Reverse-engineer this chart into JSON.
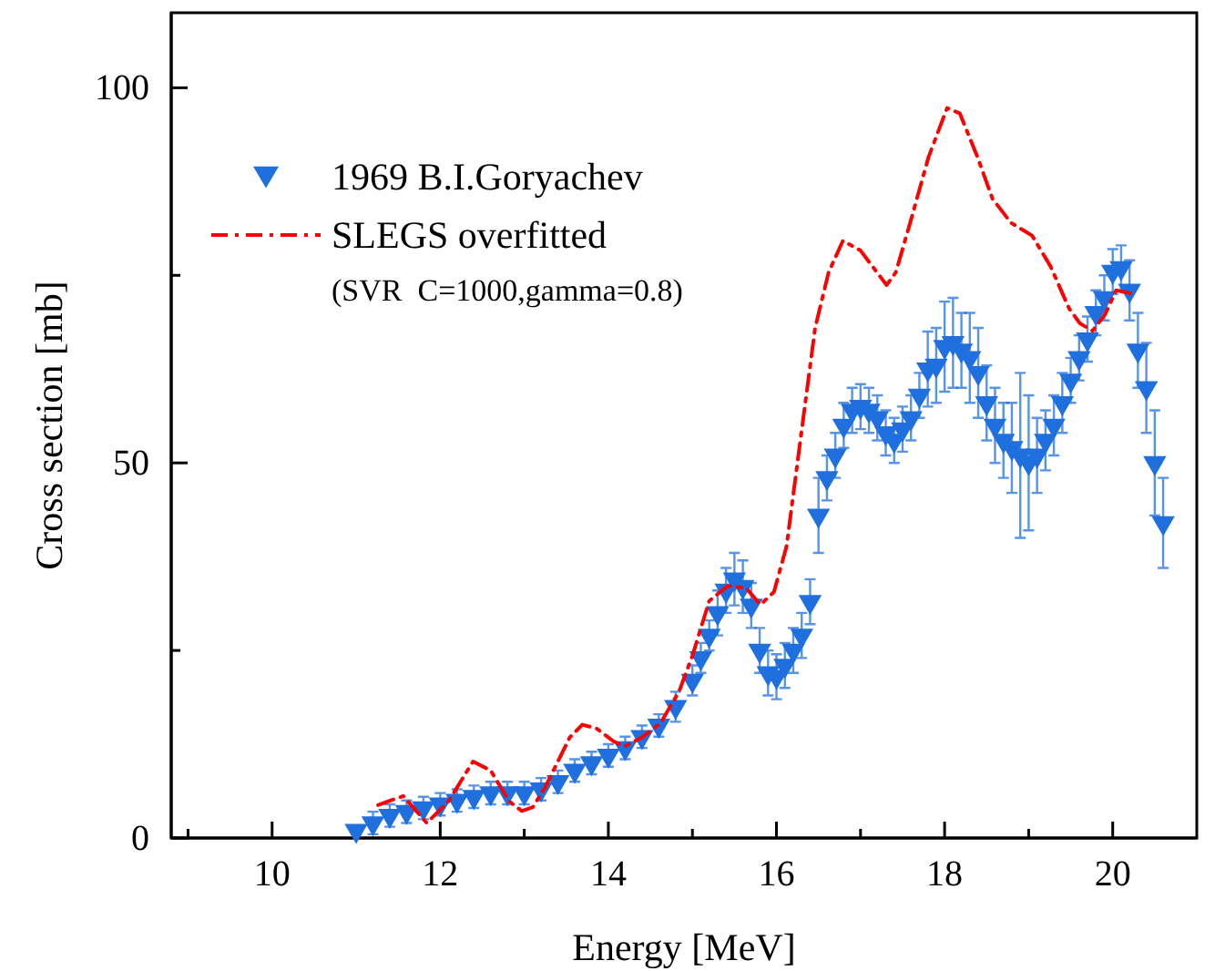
{
  "chart_data": {
    "type": "scatter",
    "xlabel": "Energy [MeV]",
    "ylabel": "Cross section [mb]",
    "xlim": [
      8.8,
      21
    ],
    "ylim": [
      0,
      110
    ],
    "xticks": [
      {
        "value": 9,
        "label": null
      },
      10,
      {
        "value": 11,
        "label": null
      },
      12,
      {
        "value": 13,
        "label": null
      },
      14,
      {
        "value": 15,
        "label": null
      },
      16,
      {
        "value": 17,
        "label": null
      },
      18,
      {
        "value": 19,
        "label": null
      },
      20
    ],
    "yticks": [
      0,
      {
        "value": 25,
        "label": null
      },
      50,
      {
        "value": 75,
        "label": null
      },
      100
    ],
    "legend": "top left",
    "grid": false,
    "annotations": [
      "(SVR  C=1000,gamma=0.8)"
    ],
    "series": [
      {
        "name": "1969 B.I.Goryachev",
        "marker": "triangle",
        "color": "#1f6fde",
        "line_style": "none",
        "x": [
          11.0,
          11.2,
          11.4,
          11.6,
          11.8,
          12.0,
          12.2,
          12.4,
          12.6,
          12.8,
          13.0,
          13.2,
          13.4,
          13.6,
          13.8,
          14.0,
          14.2,
          14.4,
          14.6,
          14.8,
          15.0,
          15.1,
          15.2,
          15.3,
          15.4,
          15.5,
          15.6,
          15.7,
          15.8,
          15.9,
          16.0,
          16.1,
          16.2,
          16.3,
          16.4,
          16.5,
          16.6,
          16.7,
          16.8,
          16.9,
          17.0,
          17.1,
          17.2,
          17.3,
          17.4,
          17.5,
          17.6,
          17.7,
          17.8,
          17.9,
          18.0,
          18.1,
          18.2,
          18.3,
          18.4,
          18.5,
          18.6,
          18.7,
          18.8,
          18.9,
          19.0,
          19.1,
          19.2,
          19.3,
          19.4,
          19.5,
          19.6,
          19.7,
          19.8,
          19.9,
          20.0,
          20.1,
          20.2,
          20.3,
          20.4,
          20.5,
          20.6
        ],
        "values": [
          1,
          2,
          3,
          3.5,
          4,
          4.5,
          5,
          5.5,
          6,
          6,
          6,
          6.5,
          7.5,
          9,
          10,
          11,
          12,
          13.5,
          15,
          17.5,
          21,
          24,
          27,
          30,
          33,
          34.5,
          33.5,
          31,
          25,
          22,
          21.5,
          23,
          25,
          27,
          31.5,
          43,
          48,
          51,
          55,
          57,
          57.5,
          57,
          56,
          54,
          53,
          54.5,
          56,
          59,
          62.5,
          63,
          65.5,
          66,
          65,
          64,
          62,
          58,
          55,
          53,
          52,
          51,
          50,
          51,
          53,
          55,
          58,
          61,
          64,
          66.5,
          70,
          72,
          75.5,
          76,
          73,
          65,
          60,
          50,
          42
        ],
        "errors": [
          0.5,
          1.5,
          1.5,
          1.5,
          1.5,
          1.5,
          1.5,
          1.5,
          1.5,
          1.5,
          1.5,
          1.5,
          1.5,
          1.5,
          1.5,
          1.5,
          1.5,
          1.5,
          1.5,
          2,
          2,
          2,
          2,
          3,
          3,
          3.5,
          3.5,
          3,
          3,
          3,
          3,
          3,
          3,
          3,
          3,
          5,
          3,
          3,
          3,
          3,
          3,
          3,
          3,
          3,
          3,
          3,
          3,
          3,
          5,
          5,
          6,
          6,
          5,
          6,
          6,
          5,
          5,
          5,
          6,
          11,
          9,
          5,
          4,
          4,
          4,
          3,
          3,
          3,
          3,
          3,
          3,
          3,
          4,
          5,
          6,
          7,
          6
        ]
      },
      {
        "name": "SLEGS overfitted",
        "type": "line",
        "marker": "none",
        "line_style": "dashed",
        "color": "#ff0000",
        "x": [
          11.26,
          11.56,
          11.84,
          12.1,
          12.39,
          12.6,
          12.82,
          12.97,
          13.1,
          13.25,
          13.4,
          13.54,
          13.69,
          13.86,
          14.06,
          14.19,
          14.4,
          14.62,
          14.84,
          15.0,
          15.2,
          15.42,
          15.64,
          15.81,
          15.97,
          16.12,
          16.29,
          16.46,
          16.62,
          16.79,
          17.0,
          17.31,
          17.42,
          17.59,
          17.81,
          18.03,
          18.18,
          18.39,
          18.57,
          18.79,
          19.04,
          19.26,
          19.48,
          19.61,
          19.76,
          19.91,
          20.04,
          20.26
        ],
        "values": [
          4.4,
          5.6,
          2,
          4.9,
          10.2,
          9,
          4.9,
          3.6,
          4.1,
          6.8,
          10.2,
          13.4,
          15.1,
          14.6,
          12.9,
          12.2,
          13.4,
          15.3,
          19.5,
          24.3,
          31.6,
          33.6,
          33.3,
          31.1,
          32.8,
          38.9,
          53.5,
          68,
          75.4,
          79.6,
          78.3,
          73.7,
          75.4,
          82,
          90.8,
          97.3,
          96.6,
          90.8,
          85.2,
          82,
          80.3,
          76.2,
          70.6,
          68.6,
          67.6,
          69.8,
          73,
          72.5
        ]
      }
    ]
  }
}
